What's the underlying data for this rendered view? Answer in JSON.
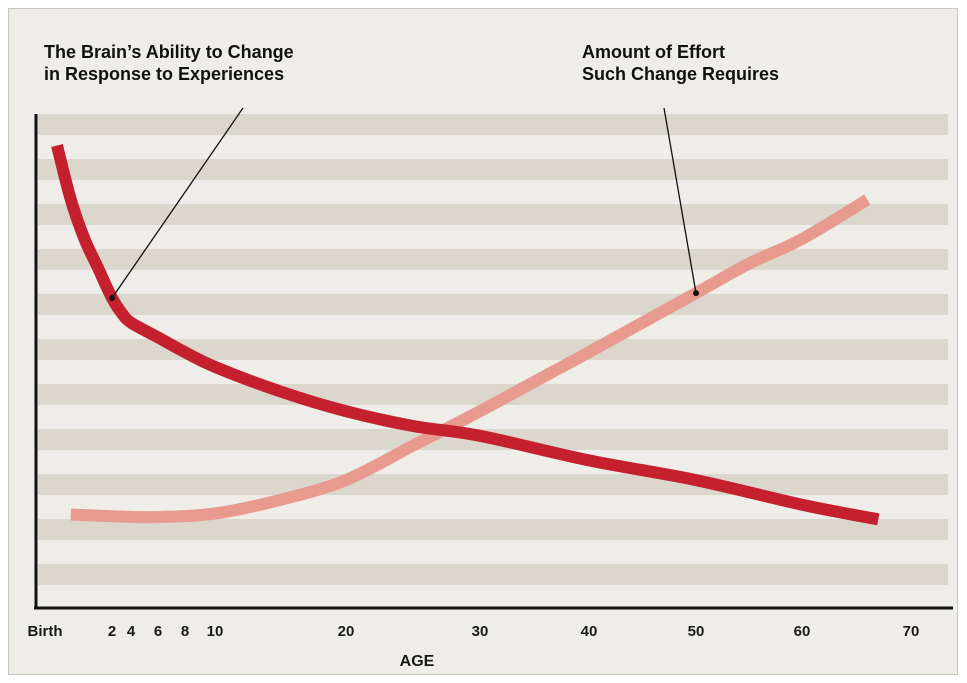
{
  "chart_data": {
    "type": "line",
    "xlabel": "AGE",
    "x_ticks": [
      {
        "label": "Birth",
        "value": 0
      },
      {
        "label": "2",
        "value": 2
      },
      {
        "label": "4",
        "value": 4
      },
      {
        "label": "6",
        "value": 6
      },
      {
        "label": "8",
        "value": 8
      },
      {
        "label": "10",
        "value": 10
      },
      {
        "label": "20",
        "value": 20
      },
      {
        "label": "30",
        "value": 30
      },
      {
        "label": "40",
        "value": 40
      },
      {
        "label": "50",
        "value": 50
      },
      {
        "label": "60",
        "value": 60
      },
      {
        "label": "70",
        "value": 70
      }
    ],
    "ylim": [
      0,
      100
    ],
    "grid": "horizontal bands",
    "annotations": [
      {
        "lines": [
          "The Brain’s Ability to Change",
          "in Response to Experiences"
        ],
        "series": 0,
        "point_x": 2
      },
      {
        "lines": [
          "Amount of Effort",
          "Such Change Requires"
        ],
        "series": 1,
        "point_x": 50
      }
    ],
    "series": [
      {
        "color": "#c4202e",
        "points": [
          [
            0,
            94
          ],
          [
            0.5,
            83
          ],
          [
            1,
            75
          ],
          [
            1.5,
            69
          ],
          [
            2,
            63
          ],
          [
            3,
            60
          ],
          [
            4,
            58
          ],
          [
            6,
            55
          ],
          [
            8,
            52
          ],
          [
            10,
            49
          ],
          [
            15,
            44
          ],
          [
            20,
            40
          ],
          [
            25,
            37
          ],
          [
            30,
            35
          ],
          [
            40,
            30
          ],
          [
            50,
            26
          ],
          [
            60,
            21
          ],
          [
            67,
            18
          ]
        ]
      },
      {
        "color": "#e89a8e",
        "points": [
          [
            0.5,
            19
          ],
          [
            3,
            18.6
          ],
          [
            6,
            18.5
          ],
          [
            10,
            19.2
          ],
          [
            15,
            22
          ],
          [
            20,
            26
          ],
          [
            25,
            33
          ],
          [
            30,
            40
          ],
          [
            35,
            46
          ],
          [
            40,
            52
          ],
          [
            45,
            58
          ],
          [
            50,
            64
          ],
          [
            55,
            70
          ],
          [
            60,
            75
          ],
          [
            66,
            83
          ]
        ]
      }
    ]
  },
  "colors": {
    "background": "#efede8",
    "band": "#dcd7cd",
    "axis": "#111111"
  }
}
